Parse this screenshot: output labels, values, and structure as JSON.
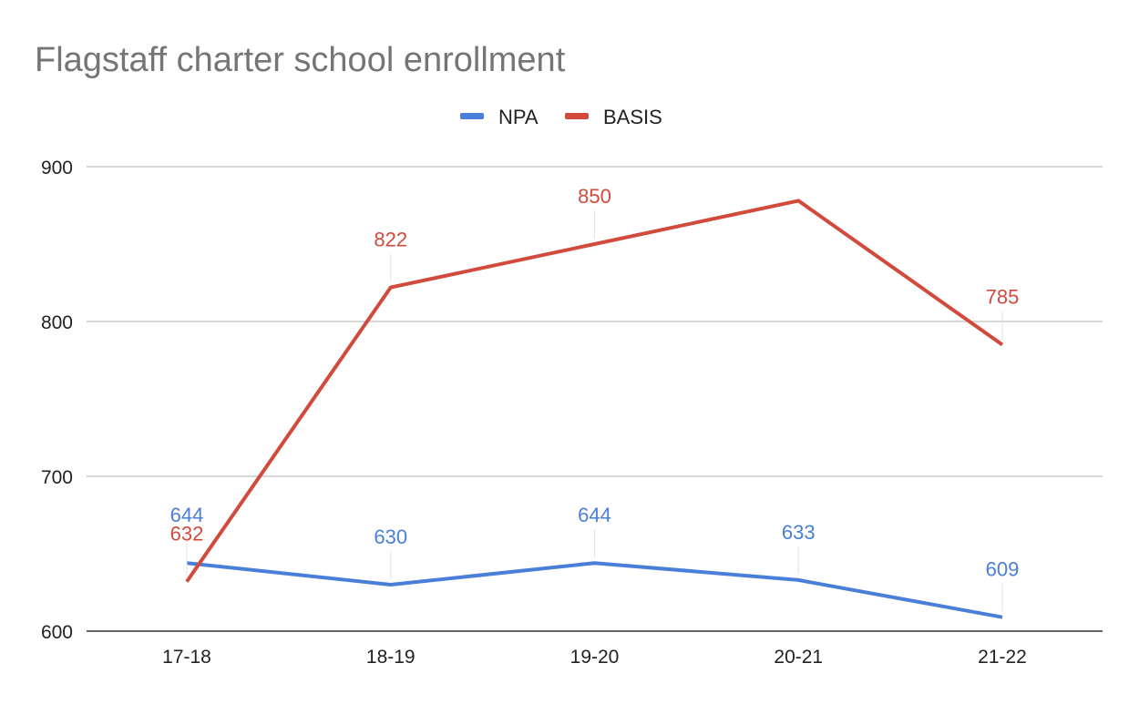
{
  "chart_data": {
    "type": "line",
    "title": "Flagstaff charter school enrollment",
    "xlabel": "",
    "ylabel": "",
    "categories": [
      "17-18",
      "18-19",
      "19-20",
      "20-21",
      "21-22"
    ],
    "ylim": [
      600,
      900
    ],
    "yticks": [
      600,
      700,
      800,
      900
    ],
    "grid": true,
    "legend_position": "top",
    "series": [
      {
        "name": "NPA",
        "color": "#4a7fd9",
        "values": [
          644,
          630,
          644,
          633,
          609
        ],
        "labels": [
          "644",
          "630",
          "644",
          "633",
          "609"
        ]
      },
      {
        "name": "BASIS",
        "color": "#d24a3c",
        "values": [
          632,
          822,
          850,
          878,
          785
        ],
        "labels": [
          "632",
          "822",
          "850",
          null,
          "785"
        ]
      }
    ]
  }
}
